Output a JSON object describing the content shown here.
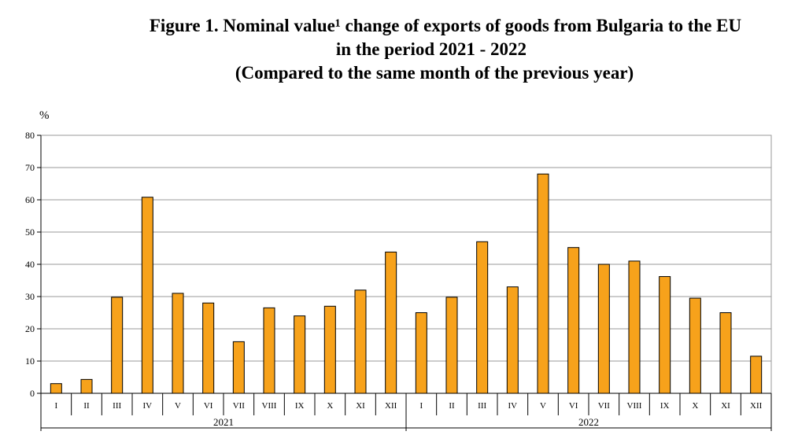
{
  "chart_data": {
    "type": "bar",
    "title_lines": [
      "Figure 1. Nominal value¹ change of exports of goods from Bulgaria to the EU",
      "in the period 2021 - 2022",
      "(Compared to the same month of the previous year)"
    ],
    "ylabel": "%",
    "ylim": [
      0,
      80
    ],
    "yticks": [
      0,
      10,
      20,
      30,
      40,
      50,
      60,
      70,
      80
    ],
    "grid": true,
    "categories": [
      "I",
      "II",
      "III",
      "IV",
      "V",
      "VI",
      "VII",
      "VIII",
      "IX",
      "X",
      "XI",
      "XII",
      "I",
      "II",
      "III",
      "IV",
      "V",
      "VI",
      "VII",
      "VIII",
      "IX",
      "X",
      "XI",
      "XII"
    ],
    "groups": [
      {
        "label": "2021",
        "count": 12
      },
      {
        "label": "2022",
        "count": 12
      }
    ],
    "values": [
      3,
      4.3,
      29.8,
      60.8,
      31,
      28,
      16,
      26.5,
      24,
      27,
      32,
      43.8,
      25,
      29.8,
      47,
      33,
      68,
      45.2,
      40,
      41,
      36.2,
      29.5,
      25,
      11.5
    ],
    "colors": {
      "bar_fill": "#f7a21b",
      "bar_stroke": "#000000",
      "grid": "#9a9a9a",
      "plot_bg": "#ffffff"
    }
  }
}
